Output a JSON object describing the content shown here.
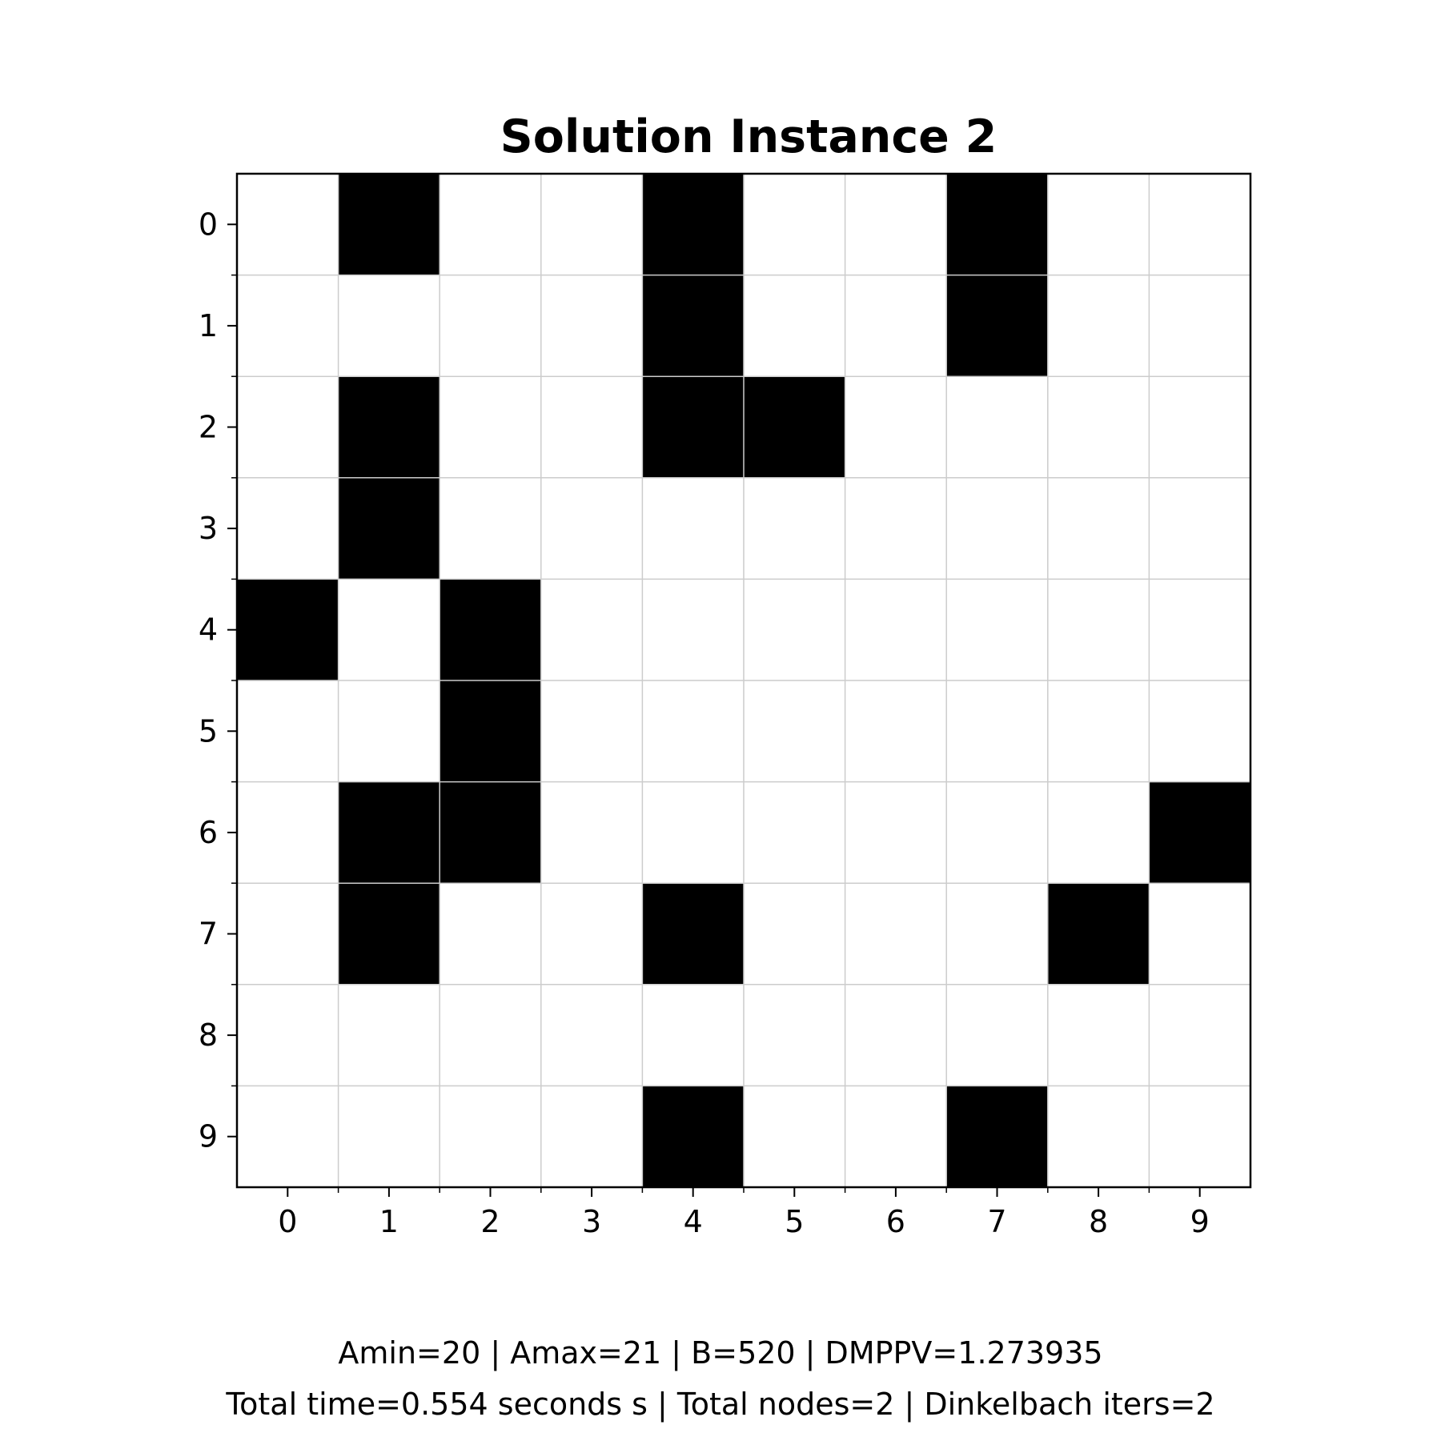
{
  "chart_data": {
    "type": "heatmap",
    "title": "Solution Instance 2",
    "xlabel": "",
    "ylabel": "",
    "x_ticks": [
      "0",
      "1",
      "2",
      "3",
      "4",
      "5",
      "6",
      "7",
      "8",
      "9"
    ],
    "y_ticks": [
      "0",
      "1",
      "2",
      "3",
      "4",
      "5",
      "6",
      "7",
      "8",
      "9"
    ],
    "grid": true,
    "colors": {
      "selected": "#000000",
      "empty": "#ffffff",
      "grid": "#cccccc",
      "frame": "#000000"
    },
    "cells": [
      [
        0,
        1,
        0,
        0,
        1,
        0,
        0,
        1,
        0,
        0
      ],
      [
        0,
        0,
        0,
        0,
        1,
        0,
        0,
        1,
        0,
        0
      ],
      [
        0,
        1,
        0,
        0,
        1,
        1,
        0,
        0,
        0,
        0
      ],
      [
        0,
        1,
        0,
        0,
        0,
        0,
        0,
        0,
        0,
        0
      ],
      [
        1,
        0,
        1,
        0,
        0,
        0,
        0,
        0,
        0,
        0
      ],
      [
        0,
        0,
        1,
        0,
        0,
        0,
        0,
        0,
        0,
        0
      ],
      [
        0,
        1,
        1,
        0,
        0,
        0,
        0,
        0,
        0,
        1
      ],
      [
        0,
        1,
        0,
        0,
        1,
        0,
        0,
        0,
        1,
        0
      ],
      [
        0,
        0,
        0,
        0,
        0,
        0,
        0,
        0,
        0,
        0
      ],
      [
        0,
        0,
        0,
        0,
        1,
        0,
        0,
        1,
        0,
        0
      ]
    ]
  },
  "caption": {
    "line1": "Amin=20 | Amax=21 | B=520 | DMPPV=1.273935",
    "line2": "Total time=0.554 seconds s | Total nodes=2 | Dinkelbach iters=2"
  }
}
